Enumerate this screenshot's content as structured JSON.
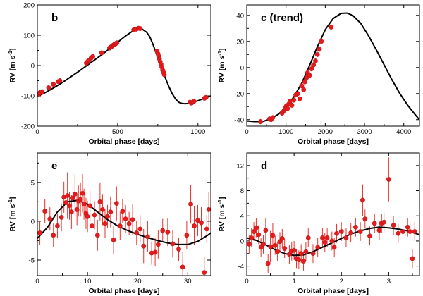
{
  "chart_data": [
    {
      "id": "b",
      "type": "scatter",
      "label": "b",
      "xlabel": "Orbital phase [days]",
      "ylabel": "RV [m s^-1]",
      "ylabel_parts": {
        "main": "RV [m s",
        "sup": "-1",
        "end": "]"
      },
      "xlim": [
        0,
        1080
      ],
      "ylim": [
        -200,
        200
      ],
      "xticks": [
        0,
        500,
        1000
      ],
      "yticks": [
        -200,
        -100,
        0,
        100,
        200
      ],
      "xticklabels": [
        "0",
        "500",
        "1000"
      ],
      "yticklabels": [
        "-200",
        "-100",
        "0",
        "100",
        "200"
      ],
      "model": {
        "x": [
          0,
          50,
          100,
          150,
          200,
          250,
          300,
          350,
          400,
          450,
          500,
          550,
          600,
          630,
          650,
          680,
          700,
          720,
          740,
          760,
          780,
          800,
          820,
          840,
          860,
          880,
          900,
          920,
          940,
          960,
          1000,
          1040,
          1080
        ],
        "y": [
          -102,
          -89,
          -74,
          -58,
          -40,
          -22,
          -3,
          16,
          35,
          56,
          77,
          98,
          116,
          122,
          121,
          110,
          95,
          70,
          40,
          12,
          -17,
          -45,
          -71,
          -93,
          -110,
          -121,
          -125,
          -126,
          -125,
          -122,
          -116,
          -108,
          -100
        ]
      },
      "points": {
        "x": [
          5,
          10,
          15,
          20,
          25,
          30,
          70,
          100,
          130,
          140,
          305,
          310,
          315,
          320,
          335,
          345,
          400,
          450,
          455,
          460,
          465,
          470,
          475,
          480,
          485,
          490,
          495,
          600,
          615,
          630,
          640,
          745,
          750,
          755,
          760,
          765,
          770,
          775,
          780,
          785,
          790,
          950,
          960,
          970,
          975,
          1040,
          1050
        ],
        "y": [
          -96,
          -93,
          -90,
          -88,
          -89,
          -86,
          -73,
          -62,
          -53,
          -50,
          8,
          11,
          14,
          17,
          25,
          30,
          42,
          58,
          60,
          62,
          64,
          66,
          68,
          70,
          71,
          73,
          75,
          118,
          120,
          123,
          122,
          48,
          40,
          32,
          22,
          12,
          4,
          -5,
          -15,
          -22,
          -30,
          -121,
          -124,
          -120,
          -118,
          -108,
          -105
        ]
      }
    },
    {
      "id": "c",
      "type": "scatter",
      "label": "c (trend)",
      "xlabel": "Orbital phase [days]",
      "ylabel": "RV [m s^-1]",
      "ylabel_parts": {
        "main": "RV [m s",
        "sup": "-1",
        "end": "]"
      },
      "xlim": [
        0,
        4400
      ],
      "ylim": [
        -45,
        48
      ],
      "xticks": [
        0,
        1000,
        2000,
        3000,
        4000
      ],
      "yticks": [
        -40,
        -20,
        0,
        20,
        40
      ],
      "xticklabels": [
        "0",
        "1000",
        "2000",
        "3000",
        "4000"
      ],
      "yticklabels": [
        "-40",
        "-20",
        "0",
        "20",
        "40"
      ],
      "model": {
        "x": [
          0,
          200,
          400,
          600,
          800,
          1000,
          1200,
          1400,
          1600,
          1800,
          2000,
          2200,
          2400,
          2550,
          2700,
          2900,
          3100,
          3300,
          3500,
          3700,
          3900,
          4100,
          4300,
          4400
        ],
        "y": [
          -41,
          -41.5,
          -41.5,
          -39.5,
          -36,
          -30.5,
          -22.5,
          -12,
          1.5,
          16,
          29,
          37.5,
          41.5,
          41.8,
          40,
          34,
          24.5,
          13.5,
          2,
          -9.5,
          -20,
          -29,
          -36.5,
          -40
        ]
      },
      "points": {
        "x": [
          350,
          580,
          620,
          660,
          900,
          950,
          980,
          1010,
          1040,
          1070,
          1100,
          1150,
          1200,
          1250,
          1300,
          1350,
          1400,
          1450,
          1480,
          1520,
          1550,
          1600,
          1650,
          1700,
          1750,
          1800,
          1850,
          1900,
          2150
        ],
        "y": [
          -41.5,
          -39.5,
          -40,
          -38.5,
          -35,
          -33,
          -31,
          -29.5,
          -31.5,
          -28,
          -26,
          -29,
          -25,
          -21,
          -20,
          -24,
          -14,
          -17,
          -11,
          -8,
          -4,
          -6,
          -1,
          2,
          5,
          10,
          14,
          20,
          31
        ]
      },
      "errors": [
        2,
        2,
        2,
        2,
        2,
        2,
        2,
        2,
        2,
        2,
        2,
        2,
        2,
        2,
        2,
        2,
        2,
        2,
        2,
        2,
        2,
        2,
        2,
        2,
        2,
        2,
        2,
        2,
        2
      ]
    },
    {
      "id": "e",
      "type": "scatter",
      "label": "e",
      "xlabel": "Orbital phase [days]",
      "ylabel": "RV [m s^-1]",
      "ylabel_parts": {
        "main": "RV [m s",
        "sup": "-1",
        "end": "]"
      },
      "xlim": [
        0,
        34.6
      ],
      "ylim": [
        -7,
        8.8
      ],
      "xticks": [
        0,
        10,
        20,
        30
      ],
      "yticks": [
        -5,
        0,
        5
      ],
      "xticklabels": [
        "0",
        "10",
        "20",
        "30"
      ],
      "yticklabels": [
        "-5",
        "0",
        "5"
      ],
      "model": {
        "x": [
          0,
          2,
          4,
          6,
          8,
          10,
          12,
          14,
          16,
          18,
          20,
          22,
          24,
          26,
          28,
          30,
          32,
          34,
          34.6
        ],
        "y": [
          -2.2,
          -0.8,
          1.2,
          2.5,
          2.7,
          2.2,
          1.2,
          0.2,
          -0.6,
          -1.2,
          -1.7,
          -2.1,
          -2.5,
          -2.8,
          -3.0,
          -3.0,
          -2.6,
          -1.8,
          -1.5
        ]
      },
      "points": {
        "x": [
          0.5,
          1.5,
          2.5,
          3.2,
          4.0,
          4.8,
          5.3,
          5.7,
          6.0,
          6.4,
          6.8,
          7.1,
          7.5,
          7.9,
          8.2,
          8.6,
          9.0,
          9.3,
          9.7,
          10.0,
          10.5,
          10.9,
          11.4,
          12.0,
          12.5,
          13.0,
          13.5,
          14.0,
          14.6,
          15.2,
          15.8,
          16.5,
          17.0,
          17.6,
          18.3,
          19.0,
          19.8,
          20.5,
          21.2,
          22.0,
          22.8,
          23.5,
          24.1,
          25.0,
          26.0,
          27.0,
          28.2,
          29.0,
          29.8,
          30.6,
          31.3,
          32.0,
          32.7,
          33.3,
          33.8,
          34.2
        ],
        "y": [
          -1.5,
          1.3,
          0.3,
          -1.8,
          -0.6,
          0.5,
          3.1,
          2.4,
          3.3,
          2.0,
          1.2,
          3.0,
          3.5,
          1.5,
          2.6,
          2.8,
          3.6,
          2.2,
          1.0,
          0.6,
          2.0,
          -0.6,
          0.8,
          -1.8,
          2.5,
          1.5,
          -0.3,
          0.6,
          1.2,
          -2.4,
          2.3,
          -0.6,
          1.3,
          0.3,
          -0.3,
          0.2,
          -1.5,
          -1.0,
          -3.2,
          -2.0,
          -4.1,
          -4.0,
          -3.0,
          -1.2,
          -1.4,
          -2.9,
          -3.6,
          -5.9,
          -1.8,
          2.2,
          -0.6,
          0.1,
          -0.2,
          -6.6,
          -1.0,
          1.5
        ],
        "err": [
          1.5,
          1.5,
          1.5,
          1.5,
          1.5,
          1.8,
          2.0,
          1.8,
          3.0,
          1.8,
          2.2,
          2.0,
          2.5,
          2.0,
          2.0,
          2.2,
          2.5,
          2.0,
          2.0,
          2.0,
          2.0,
          2.0,
          1.8,
          2.0,
          2.5,
          2.0,
          1.8,
          1.5,
          2.0,
          1.8,
          2.2,
          1.8,
          1.5,
          1.8,
          1.5,
          2.0,
          1.5,
          1.8,
          2.2,
          2.0,
          1.5,
          1.8,
          1.8,
          1.5,
          1.8,
          1.8,
          1.5,
          2.0,
          1.8,
          2.5,
          2.5,
          2.0,
          2.0,
          2.0,
          1.8,
          2.2
        ]
      }
    },
    {
      "id": "d",
      "type": "scatter",
      "label": "d",
      "xlabel": "Orbital phase [days]",
      "ylabel": "RV [m s^-1]",
      "ylabel_parts": {
        "main": "RV [m s",
        "sup": "-1",
        "end": "]"
      },
      "xlim": [
        0,
        3.65
      ],
      "ylim": [
        -5.5,
        14
      ],
      "xticks": [
        0,
        1,
        2,
        3
      ],
      "yticks": [
        -4,
        0,
        4,
        8,
        12
      ],
      "xticklabels": [
        "0",
        "1",
        "2",
        "3"
      ],
      "yticklabels": [
        "-4",
        "0",
        "4",
        "8",
        "12"
      ],
      "model": {
        "x": [
          0,
          0.2,
          0.4,
          0.6,
          0.8,
          1.0,
          1.2,
          1.4,
          1.6,
          1.8,
          2.0,
          2.2,
          2.4,
          2.6,
          2.8,
          3.0,
          3.2,
          3.4,
          3.65
        ],
        "y": [
          0.5,
          0.1,
          -0.6,
          -1.4,
          -2.0,
          -2.3,
          -2.2,
          -1.7,
          -1.0,
          -0.3,
          0.4,
          1.1,
          1.6,
          2.0,
          2.2,
          2.1,
          1.9,
          1.6,
          1.0
        ]
      },
      "points": {
        "x": [
          0.05,
          0.1,
          0.15,
          0.2,
          0.25,
          0.3,
          0.35,
          0.4,
          0.45,
          0.5,
          0.55,
          0.6,
          0.65,
          0.7,
          0.75,
          0.8,
          0.9,
          0.95,
          1.0,
          1.05,
          1.1,
          1.15,
          1.2,
          1.25,
          1.3,
          1.4,
          1.5,
          1.6,
          1.65,
          1.7,
          1.8,
          1.85,
          1.9,
          2.0,
          2.1,
          2.2,
          2.3,
          2.4,
          2.45,
          2.5,
          2.6,
          2.7,
          2.8,
          2.85,
          2.9,
          3.0,
          3.1,
          3.2,
          3.3,
          3.4,
          3.45,
          3.5,
          3.55
        ],
        "y": [
          -0.5,
          0.5,
          1.5,
          2.1,
          1.0,
          -1.0,
          -0.5,
          1.7,
          -3.6,
          -0.9,
          0.9,
          -0.7,
          -1.7,
          -0.1,
          0.4,
          -1.2,
          -2.1,
          -1.6,
          -1.5,
          -2.8,
          -3.0,
          -2.0,
          -3.2,
          -1.7,
          0.5,
          -2.0,
          -1.0,
          0.5,
          -0.2,
          0.5,
          0.0,
          -1.0,
          1.2,
          1.5,
          0.5,
          1.3,
          2.2,
          1.5,
          6.5,
          3.5,
          0.8,
          2.8,
          1.7,
          2.8,
          3.0,
          9.8,
          2.5,
          1.2,
          1.5,
          2.2,
          1.5,
          -2.8,
          1.5
        ],
        "err": [
          1.5,
          1.5,
          1.5,
          1.5,
          1.5,
          1.5,
          1.5,
          2.0,
          1.5,
          2.5,
          2.0,
          1.5,
          1.5,
          1.5,
          1.5,
          1.5,
          1.5,
          1.5,
          1.5,
          1.5,
          1.5,
          1.5,
          1.5,
          1.5,
          1.5,
          1.5,
          1.5,
          1.5,
          1.5,
          1.5,
          1.5,
          1.5,
          1.5,
          1.5,
          1.5,
          1.5,
          1.5,
          1.5,
          2.5,
          1.5,
          1.5,
          1.5,
          1.5,
          1.5,
          1.5,
          3.5,
          1.5,
          1.5,
          1.5,
          1.5,
          1.5,
          1.5,
          1.5
        ]
      }
    }
  ]
}
